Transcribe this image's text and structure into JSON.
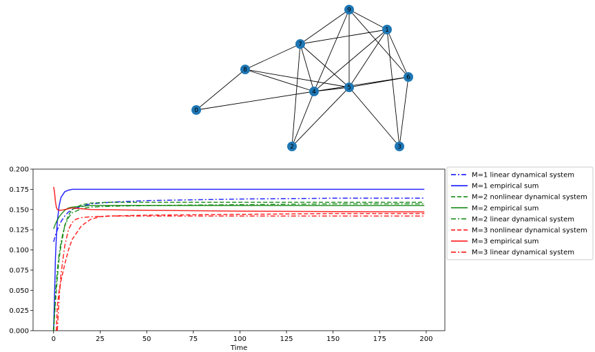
{
  "graph": {
    "nodes": [
      {
        "id": "9",
        "pos": [
          507,
          14
        ]
      },
      {
        "id": "1",
        "pos": [
          562,
          43
        ]
      },
      {
        "id": "7",
        "pos": [
          436,
          64
        ]
      },
      {
        "id": "8",
        "pos": [
          356,
          101
        ]
      },
      {
        "id": "6",
        "pos": [
          593,
          112
        ]
      },
      {
        "id": "5",
        "pos": [
          507,
          127
        ]
      },
      {
        "id": "4",
        "pos": [
          456,
          133
        ]
      },
      {
        "id": "0",
        "pos": [
          285,
          160
        ]
      },
      {
        "id": "2",
        "pos": [
          424,
          213
        ]
      },
      {
        "id": "3",
        "pos": [
          580,
          213
        ]
      }
    ],
    "edges": [
      [
        "9",
        "7"
      ],
      [
        "9",
        "1"
      ],
      [
        "9",
        "4"
      ],
      [
        "9",
        "5"
      ],
      [
        "9",
        "6"
      ],
      [
        "1",
        "7"
      ],
      [
        "1",
        "4"
      ],
      [
        "1",
        "5"
      ],
      [
        "1",
        "3"
      ],
      [
        "1",
        "6"
      ],
      [
        "7",
        "4"
      ],
      [
        "7",
        "5"
      ],
      [
        "7",
        "2"
      ],
      [
        "7",
        "8"
      ],
      [
        "8",
        "4"
      ],
      [
        "8",
        "5"
      ],
      [
        "8",
        "0"
      ],
      [
        "4",
        "6"
      ],
      [
        "4",
        "0"
      ],
      [
        "4",
        "2"
      ],
      [
        "4",
        "5"
      ],
      [
        "5",
        "6"
      ],
      [
        "5",
        "2"
      ],
      [
        "5",
        "3"
      ],
      [
        "6",
        "3"
      ]
    ],
    "node_color": "#1f77b4"
  },
  "chart_data": {
    "type": "line",
    "xlabel": "Time",
    "ylabel": "",
    "title": "",
    "xlim": [
      -11,
      210
    ],
    "ylim": [
      0,
      0.2
    ],
    "xticks": [
      "0",
      "25",
      "50",
      "75",
      "100",
      "125",
      "150",
      "175",
      "200"
    ],
    "yticks": [
      "0.000",
      "0.025",
      "0.050",
      "0.075",
      "0.100",
      "0.125",
      "0.150",
      "0.175",
      "0.200"
    ],
    "legend_position": "outside-right",
    "series": [
      {
        "name": "M=1 linear dynamical system",
        "color": "#0000ff",
        "style": "dashdot",
        "x": [
          0,
          1,
          2,
          4,
          6,
          8,
          10,
          15,
          20,
          30,
          50,
          75,
          100,
          150,
          199
        ],
        "y": [
          0.11,
          0.118,
          0.125,
          0.135,
          0.142,
          0.147,
          0.15,
          0.154,
          0.157,
          0.159,
          0.161,
          0.162,
          0.163,
          0.164,
          0.164
        ]
      },
      {
        "name": "M=1 empirical sum",
        "color": "#0000ff",
        "style": "solid",
        "x": [
          0,
          0.5,
          1,
          1.5,
          2,
          3,
          4,
          6,
          8,
          10,
          15,
          50,
          100,
          150,
          199
        ],
        "y": [
          0.0,
          0.04,
          0.09,
          0.115,
          0.135,
          0.155,
          0.165,
          0.172,
          0.174,
          0.175,
          0.175,
          0.175,
          0.175,
          0.175,
          0.175
        ]
      },
      {
        "name": "M=2 nonlinear dynamical system",
        "color": "#008000",
        "style": "dashed",
        "x": [
          0,
          1,
          2,
          3,
          4,
          6,
          8,
          10,
          15,
          20,
          30,
          50,
          100,
          150,
          199
        ],
        "y": [
          0.0,
          0.035,
          0.065,
          0.09,
          0.105,
          0.13,
          0.143,
          0.15,
          0.156,
          0.158,
          0.159,
          0.159,
          0.159,
          0.159,
          0.159
        ]
      },
      {
        "name": "M=2 empirical sum",
        "color": "#008000",
        "style": "solid",
        "x": [
          0,
          1,
          2,
          3,
          4,
          6,
          8,
          10,
          15,
          20,
          30,
          50,
          100,
          150,
          199
        ],
        "y": [
          0.126,
          0.132,
          0.137,
          0.141,
          0.144,
          0.149,
          0.152,
          0.153,
          0.154,
          0.155,
          0.155,
          0.155,
          0.155,
          0.155,
          0.155
        ]
      },
      {
        "name": "M=2 linear dynamical system",
        "color": "#008000",
        "style": "dashdot",
        "x": [
          0,
          1,
          2,
          3,
          4,
          6,
          8,
          10,
          15,
          20,
          30,
          50,
          100,
          150,
          199
        ],
        "y": [
          0.0,
          0.045,
          0.075,
          0.095,
          0.11,
          0.13,
          0.14,
          0.146,
          0.151,
          0.153,
          0.154,
          0.155,
          0.156,
          0.157,
          0.157
        ]
      },
      {
        "name": "M=3 nonlinear dynamical system",
        "color": "#ff0000",
        "style": "dashed",
        "x": [
          1.5,
          2,
          3,
          4,
          6,
          8,
          10,
          15,
          20,
          25,
          30,
          50,
          100,
          150,
          199
        ],
        "y": [
          0.0,
          0.03,
          0.05,
          0.062,
          0.082,
          0.1,
          0.113,
          0.13,
          0.138,
          0.141,
          0.142,
          0.143,
          0.144,
          0.145,
          0.145
        ]
      },
      {
        "name": "M=3 empirical sum",
        "color": "#ff0000",
        "style": "solid",
        "x": [
          0,
          0.5,
          1,
          1.5,
          2,
          3,
          4,
          6,
          8,
          10,
          15,
          20,
          50,
          100,
          199
        ],
        "y": [
          0.178,
          0.172,
          0.16,
          0.153,
          0.15,
          0.149,
          0.149,
          0.15,
          0.151,
          0.152,
          0.151,
          0.15,
          0.149,
          0.148,
          0.147
        ]
      },
      {
        "name": "M=3 linear dynamical system",
        "color": "#ff0000",
        "style": "dashdot",
        "x": [
          2,
          3,
          4,
          6,
          8,
          10,
          12,
          15,
          20,
          30,
          50,
          100,
          150,
          199
        ],
        "y": [
          0.0,
          0.04,
          0.07,
          0.105,
          0.125,
          0.134,
          0.138,
          0.14,
          0.141,
          0.142,
          0.142,
          0.142,
          0.142,
          0.142
        ]
      }
    ]
  }
}
